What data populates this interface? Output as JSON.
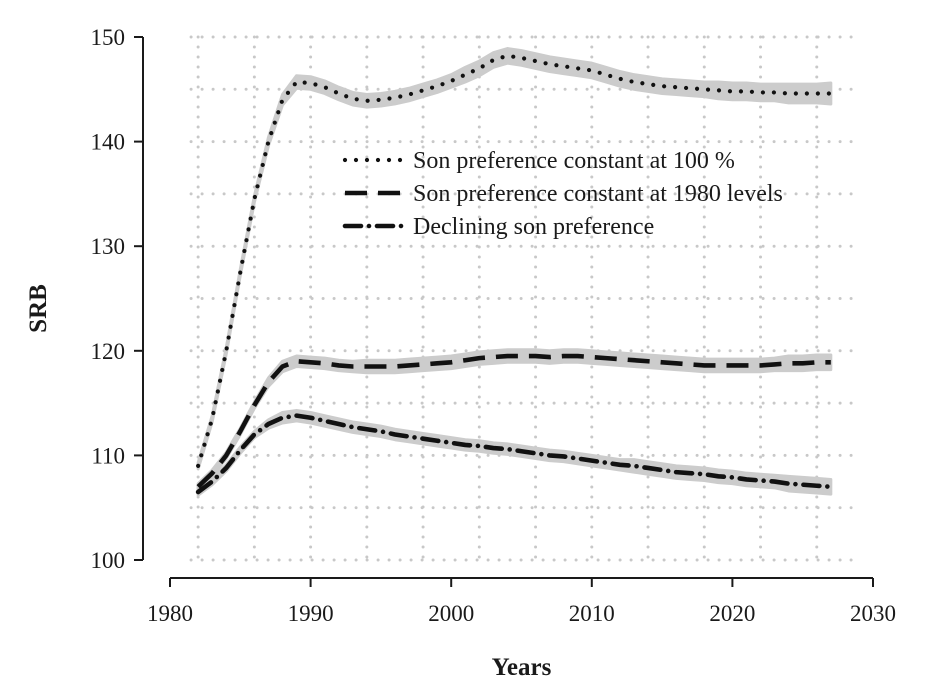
{
  "chart_data": {
    "type": "line",
    "title": "",
    "xlabel": "Years",
    "ylabel": "SRB",
    "xlim": [
      1980,
      2030
    ],
    "ylim": [
      100,
      150
    ],
    "xticks": [
      1980,
      1990,
      2000,
      2010,
      2020,
      2030
    ],
    "yticks": [
      100,
      110,
      120,
      130,
      140,
      150
    ],
    "grid": "dotted",
    "legend_position": "top-right",
    "band_color": "#cccccc",
    "line_color": "#111111",
    "series": [
      {
        "name": "Son preference constant at 100 %",
        "style": "dotted",
        "x": [
          1982,
          1983,
          1984,
          1985,
          1986,
          1987,
          1988,
          1989,
          1990,
          1991,
          1992,
          1993,
          1994,
          1995,
          1996,
          1997,
          1998,
          1999,
          2000,
          2001,
          2002,
          2003,
          2004,
          2005,
          2006,
          2007,
          2008,
          2009,
          2010,
          2011,
          2012,
          2013,
          2014,
          2015,
          2016,
          2017,
          2018,
          2019,
          2020,
          2021,
          2022,
          2023,
          2024,
          2025,
          2026,
          2027
        ],
        "values": [
          109.0,
          113.5,
          120.0,
          127.5,
          134.5,
          140.0,
          144.0,
          145.7,
          145.6,
          145.2,
          144.6,
          144.1,
          143.9,
          144.0,
          144.2,
          144.5,
          144.9,
          145.3,
          145.8,
          146.4,
          147.0,
          147.8,
          148.2,
          148.0,
          147.7,
          147.4,
          147.2,
          147.0,
          146.8,
          146.4,
          146.0,
          145.7,
          145.5,
          145.3,
          145.2,
          145.1,
          145.0,
          144.9,
          144.8,
          144.8,
          144.7,
          144.7,
          144.6,
          144.6,
          144.6,
          144.6
        ],
        "band": [
          0.3,
          0.3,
          0.3,
          0.3,
          0.3,
          0.4,
          0.5,
          0.6,
          0.6,
          0.6,
          0.6,
          0.6,
          0.6,
          0.6,
          0.6,
          0.6,
          0.6,
          0.6,
          0.6,
          0.7,
          0.7,
          0.7,
          0.7,
          0.7,
          0.7,
          0.7,
          0.7,
          0.7,
          0.7,
          0.7,
          0.7,
          0.7,
          0.7,
          0.7,
          0.7,
          0.7,
          0.7,
          0.8,
          0.8,
          0.8,
          0.8,
          0.8,
          0.9,
          0.9,
          0.9,
          1.0
        ]
      },
      {
        "name": "Son preference constant at 1980 levels",
        "style": "dashed",
        "x": [
          1982,
          1983,
          1984,
          1985,
          1986,
          1987,
          1988,
          1989,
          1990,
          1991,
          1992,
          1993,
          1994,
          1995,
          1996,
          1997,
          1998,
          1999,
          2000,
          2001,
          2002,
          2003,
          2004,
          2005,
          2006,
          2007,
          2008,
          2009,
          2010,
          2011,
          2012,
          2013,
          2014,
          2015,
          2016,
          2017,
          2018,
          2019,
          2020,
          2021,
          2022,
          2023,
          2024,
          2025,
          2026,
          2027
        ],
        "values": [
          107.0,
          108.3,
          110.0,
          112.3,
          114.8,
          117.0,
          118.5,
          119.0,
          118.9,
          118.8,
          118.6,
          118.5,
          118.5,
          118.5,
          118.5,
          118.6,
          118.7,
          118.8,
          118.9,
          119.1,
          119.3,
          119.4,
          119.5,
          119.5,
          119.5,
          119.4,
          119.5,
          119.5,
          119.4,
          119.3,
          119.2,
          119.1,
          119.0,
          118.9,
          118.8,
          118.7,
          118.6,
          118.6,
          118.6,
          118.6,
          118.6,
          118.7,
          118.8,
          118.8,
          118.9,
          118.9
        ],
        "band": [
          0.3,
          0.3,
          0.3,
          0.3,
          0.3,
          0.4,
          0.5,
          0.5,
          0.5,
          0.5,
          0.5,
          0.5,
          0.6,
          0.6,
          0.6,
          0.6,
          0.6,
          0.6,
          0.6,
          0.6,
          0.6,
          0.6,
          0.6,
          0.6,
          0.6,
          0.6,
          0.6,
          0.6,
          0.6,
          0.6,
          0.6,
          0.6,
          0.6,
          0.6,
          0.6,
          0.6,
          0.6,
          0.6,
          0.6,
          0.6,
          0.6,
          0.6,
          0.7,
          0.7,
          0.7,
          0.7
        ]
      },
      {
        "name": "Declining son preference",
        "style": "dash-dot",
        "x": [
          1982,
          1983,
          1984,
          1985,
          1986,
          1987,
          1988,
          1989,
          1990,
          1991,
          1992,
          1993,
          1994,
          1995,
          1996,
          1997,
          1998,
          1999,
          2000,
          2001,
          2002,
          2003,
          2004,
          2005,
          2006,
          2007,
          2008,
          2009,
          2010,
          2011,
          2012,
          2013,
          2014,
          2015,
          2016,
          2017,
          2018,
          2019,
          2020,
          2021,
          2022,
          2023,
          2024,
          2025,
          2026,
          2027
        ],
        "values": [
          106.5,
          107.5,
          108.8,
          110.5,
          112.0,
          113.0,
          113.6,
          113.8,
          113.6,
          113.3,
          113.0,
          112.7,
          112.5,
          112.3,
          112.0,
          111.8,
          111.6,
          111.4,
          111.2,
          111.0,
          110.9,
          110.7,
          110.6,
          110.4,
          110.2,
          110.0,
          109.9,
          109.7,
          109.5,
          109.3,
          109.1,
          109.0,
          108.8,
          108.6,
          108.4,
          108.3,
          108.2,
          108.0,
          107.9,
          107.7,
          107.6,
          107.5,
          107.3,
          107.2,
          107.1,
          107.0
        ],
        "band": [
          0.3,
          0.3,
          0.3,
          0.3,
          0.3,
          0.4,
          0.5,
          0.5,
          0.5,
          0.5,
          0.5,
          0.5,
          0.5,
          0.5,
          0.5,
          0.5,
          0.5,
          0.5,
          0.5,
          0.5,
          0.5,
          0.5,
          0.5,
          0.5,
          0.5,
          0.5,
          0.5,
          0.5,
          0.5,
          0.5,
          0.5,
          0.6,
          0.6,
          0.6,
          0.6,
          0.6,
          0.6,
          0.6,
          0.6,
          0.6,
          0.6,
          0.6,
          0.7,
          0.7,
          0.7,
          0.7
        ]
      }
    ]
  }
}
